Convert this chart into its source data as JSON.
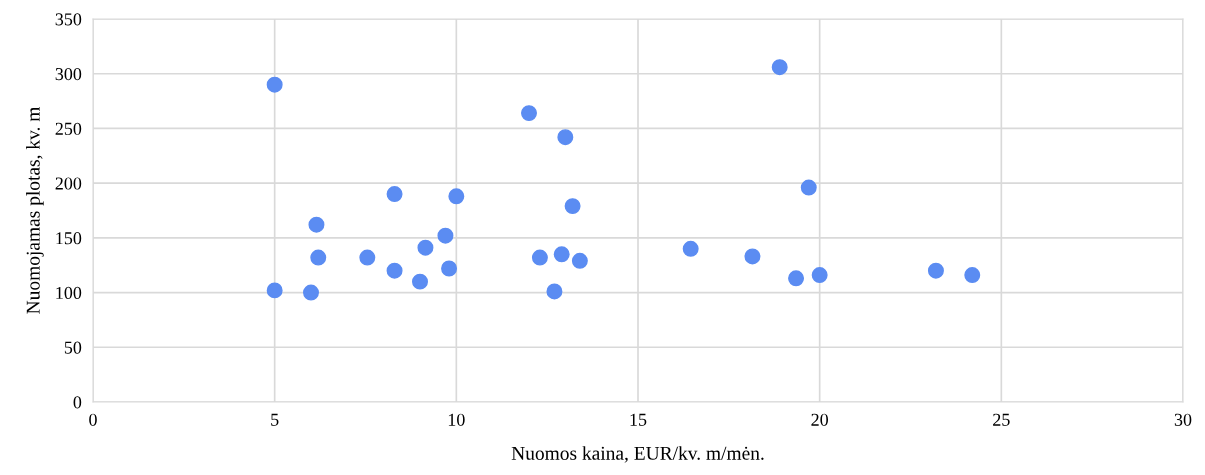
{
  "chart_data": {
    "type": "scatter",
    "xlabel": "Nuomos kaina, EUR/kv. m/mėn.",
    "ylabel": "Nuomojamas plotas, kv. m",
    "x": [
      5,
      5,
      6,
      6.15,
      6.2,
      7.55,
      8.3,
      8.3,
      9.15,
      9,
      9.7,
      9.8,
      10,
      12,
      12.3,
      12.7,
      12.9,
      13,
      13.2,
      13.4,
      16.45,
      18.15,
      18.9,
      19.7,
      19.35,
      20,
      23.2,
      24.2
    ],
    "series": [
      {
        "color": "#5b8cf2",
        "values": [
          290,
          102,
          100,
          162,
          132,
          132,
          190,
          120,
          141,
          110,
          152,
          122,
          188,
          264,
          132,
          101,
          135,
          242,
          179,
          129,
          140,
          133,
          306,
          196,
          113,
          116,
          120,
          116
        ]
      }
    ],
    "xlim": [
      0,
      30
    ],
    "xticks": [
      0,
      5,
      10,
      15,
      20,
      25,
      30
    ],
    "ylim": [
      0,
      350
    ],
    "yticks": [
      0,
      50,
      100,
      150,
      200,
      250,
      300,
      350
    ],
    "grid": true,
    "marker": "circle"
  }
}
